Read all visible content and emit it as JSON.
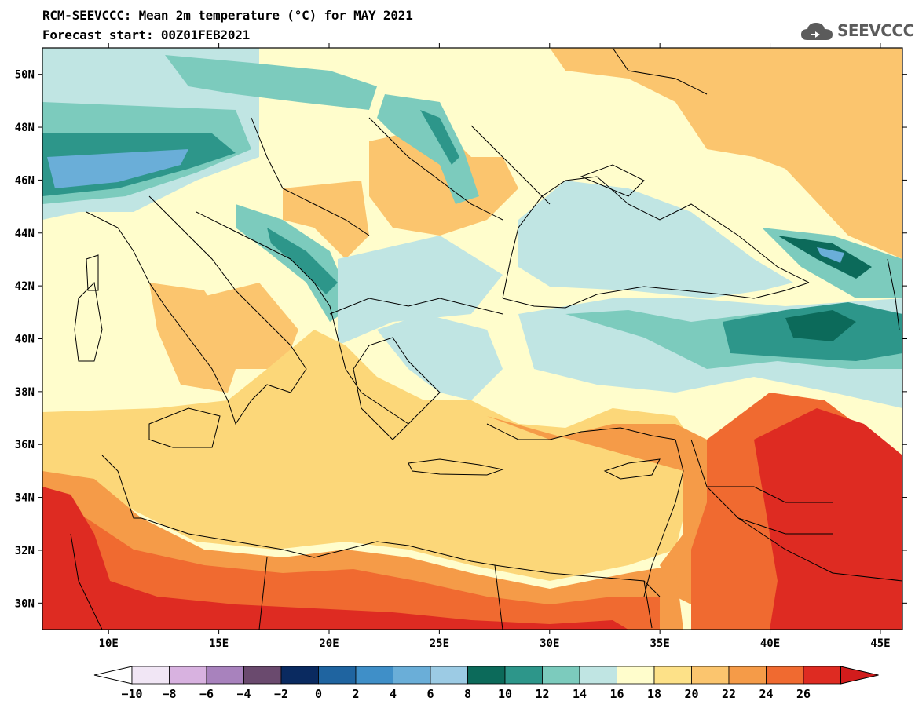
{
  "header": {
    "title": "RCM-SEEVCCC: Mean 2m temperature (°C) for MAY 2021",
    "subtitle": "Forecast start: 00Z01FEB2021",
    "logo_text": "SEEVCCC"
  },
  "map": {
    "extent": {
      "lon": [
        7,
        46
      ],
      "lat": [
        29,
        51
      ]
    },
    "lat_ticks": [
      {
        "value": 50,
        "label": "50N"
      },
      {
        "value": 48,
        "label": "48N"
      },
      {
        "value": 46,
        "label": "46N"
      },
      {
        "value": 44,
        "label": "44N"
      },
      {
        "value": 42,
        "label": "42N"
      },
      {
        "value": 40,
        "label": "40N"
      },
      {
        "value": 38,
        "label": "38N"
      },
      {
        "value": 36,
        "label": "36N"
      },
      {
        "value": 34,
        "label": "34N"
      },
      {
        "value": 32,
        "label": "32N"
      },
      {
        "value": 30,
        "label": "30N"
      }
    ],
    "lon_ticks": [
      {
        "value": 10,
        "label": "10E"
      },
      {
        "value": 15,
        "label": "15E"
      },
      {
        "value": 20,
        "label": "20E"
      },
      {
        "value": 25,
        "label": "25E"
      },
      {
        "value": 30,
        "label": "30E"
      },
      {
        "value": 35,
        "label": "35E"
      },
      {
        "value": 40,
        "label": "40E"
      },
      {
        "value": 45,
        "label": "45E"
      }
    ]
  },
  "colorbar": {
    "colors": [
      "#f1e6f5",
      "#d8b2e0",
      "#a882bd",
      "#6a4a6e",
      "#0a2a60",
      "#1f64a0",
      "#3f8fc8",
      "#6aaed8",
      "#9ccbe4",
      "#0c6a5a",
      "#2d968a",
      "#7ccbbd",
      "#c0e5e3",
      "#fffdcc",
      "#fde188",
      "#fbc56e",
      "#f59b48",
      "#f06a30",
      "#de2b22"
    ],
    "under_color": "#ffffff",
    "over_color": "#d11c1c",
    "tick_labels": [
      "−10",
      "−8",
      "−6",
      "−4",
      "−2",
      "0",
      "2",
      "4",
      "6",
      "8",
      "10",
      "12",
      "14",
      "16",
      "18",
      "20",
      "22",
      "24",
      "26"
    ]
  },
  "field_colors": {
    "land_mid": "#fffdcc",
    "warm_sea": "#fcd779",
    "warm_20": "#fbc56e",
    "warm_22": "#f59b48",
    "warm_24": "#f06a30",
    "hot_26": "#de2b22",
    "cool_16": "#c0e5e3",
    "cool_14": "#7ccbbd",
    "cool_12": "#2d968a",
    "cool_10": "#0c6a5a",
    "cold_8": "#6aaed8"
  }
}
